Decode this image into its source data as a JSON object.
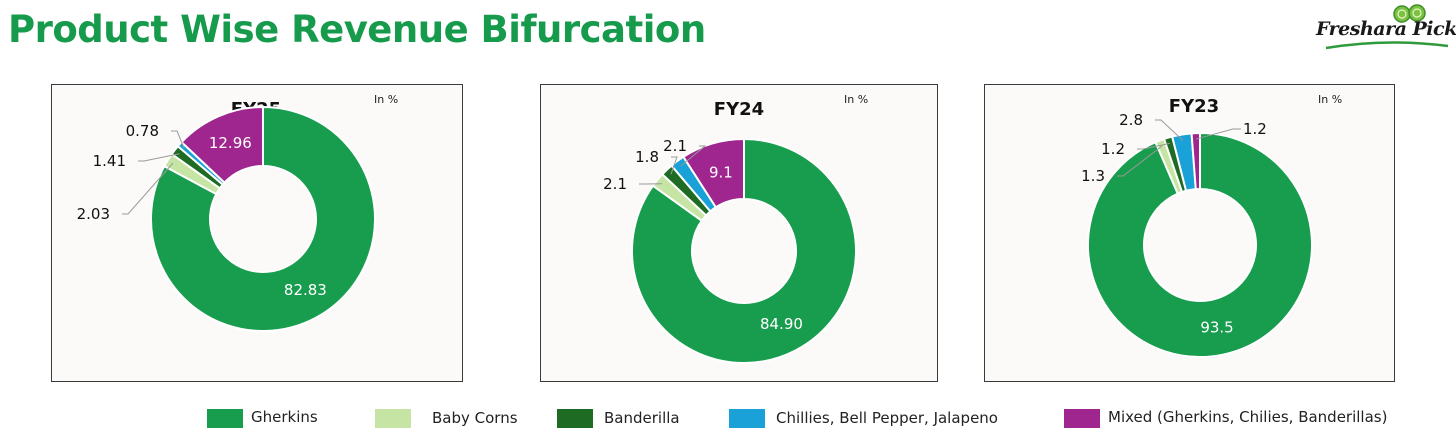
{
  "title": "Product Wise Revenue Bifurcation",
  "logo": {
    "text": "Freshara Pickle"
  },
  "colors": {
    "Gherkins": "#189d4e",
    "Baby Corns": "#c6e5a5",
    "Banderilla": "#1e6b24",
    "Chillies, Bell Pepper, Jalapeno": "#19a1d8",
    "Mixed (Gherkins, Chilies, Banderillas)": "#a0268f"
  },
  "legend": [
    "Gherkins",
    "Baby Corns",
    "Banderilla",
    "Chillies, Bell Pepper, Jalapeno",
    "Mixed (Gherkins, Chilies, Banderillas)"
  ],
  "chart_data": [
    {
      "type": "pie",
      "title": "FY25",
      "unit_note": "In %",
      "labels": [
        "Gherkins",
        "Baby Corns",
        "Banderilla",
        "Chillies, Bell Pepper, Jalapeno",
        "Mixed (Gherkins, Chilies, Banderillas)"
      ],
      "values": [
        82.83,
        2.03,
        1.41,
        0.78,
        12.96
      ],
      "value_labels": [
        "82.83",
        "2.03",
        "1.41",
        "0.78",
        "12.96"
      ]
    },
    {
      "type": "pie",
      "title": "FY24",
      "unit_note": "In %",
      "labels": [
        "Gherkins",
        "Baby Corns",
        "Banderilla",
        "Chillies, Bell Pepper, Jalapeno",
        "Mixed (Gherkins, Chilies, Banderillas)"
      ],
      "values": [
        84.9,
        2.1,
        1.8,
        2.1,
        9.1
      ],
      "value_labels": [
        "84.90",
        "2.1",
        "1.8",
        "2.1",
        "9.1"
      ]
    },
    {
      "type": "pie",
      "title": "FY23",
      "unit_note": "In %",
      "labels": [
        "Gherkins",
        "Baby Corns",
        "Banderilla",
        "Chillies, Bell Pepper, Jalapeno",
        "Mixed (Gherkins, Chilies, Banderillas)"
      ],
      "values": [
        93.5,
        1.3,
        1.2,
        2.8,
        1.2
      ],
      "value_labels": [
        "93.5",
        "1.3",
        "1.2",
        "2.8",
        "1.2"
      ]
    }
  ]
}
